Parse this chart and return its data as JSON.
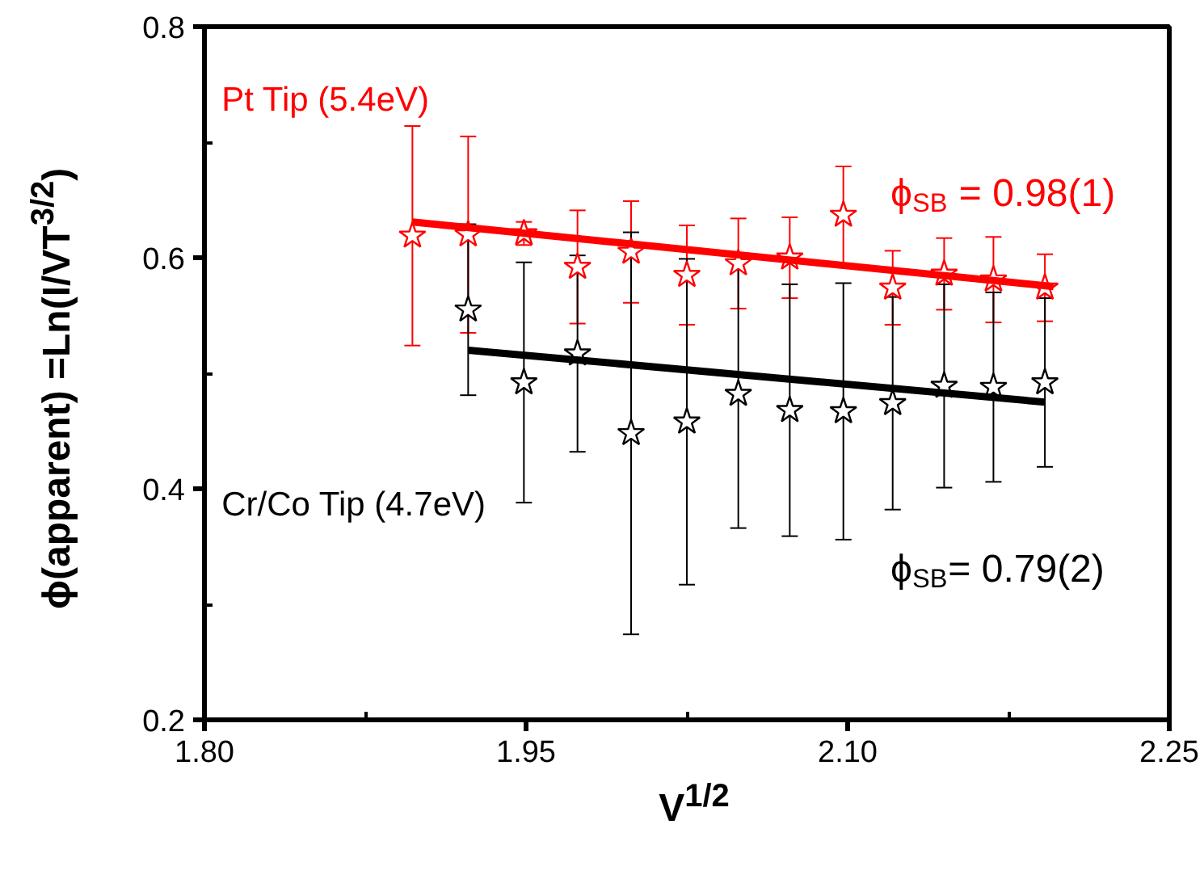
{
  "chart_data": {
    "type": "scatter",
    "xlabel": "V$^{1/2}$",
    "ylabel": "ϕ(apparent) =Ln(I/VT$^{3/2}$)",
    "xlim": [
      1.8,
      2.25
    ],
    "xticks": [
      {
        "value": 1.8,
        "label": "1.80"
      },
      1.95,
      {
        "value": 2.1,
        "label": "2.10"
      },
      2.25
    ],
    "ylim": [
      0.2,
      0.8
    ],
    "yticks": [
      0.2,
      0.4,
      0.6,
      0.8
    ],
    "annotations": [
      "ϕ$_{SB}$ = 0.98(1)",
      "ϕ$_{SB}$= 0.79(2)"
    ],
    "series": [
      {
        "name": "Pt Tip (5.4eV)",
        "marker": "star",
        "color": "#ff0000",
        "x": [
          1.897,
          1.923,
          1.949,
          1.974,
          1.999,
          2.025,
          2.049,
          2.073,
          2.098,
          2.121,
          2.145,
          2.168,
          2.192
        ],
        "values": [
          0.619,
          0.62,
          0.621,
          0.592,
          0.605,
          0.585,
          0.595,
          0.6,
          0.637,
          0.574,
          0.586,
          0.581,
          0.574
        ],
        "errors": [
          0.095,
          0.085,
          0.01,
          0.049,
          0.044,
          0.043,
          0.039,
          0.035,
          0.042,
          0.032,
          0.031,
          0.037,
          0.029
        ]
      },
      {
        "name": "Cr/Co Tip (4.7eV)",
        "marker": "star",
        "color": "#000000",
        "x": [
          1.923,
          1.949,
          1.974,
          1.999,
          2.025,
          2.049,
          2.073,
          2.098,
          2.121,
          2.145,
          2.168,
          2.192
        ],
        "values": [
          0.555,
          0.492,
          0.517,
          0.448,
          0.458,
          0.482,
          0.468,
          0.467,
          0.474,
          0.489,
          0.488,
          0.492
        ],
        "errors": [
          0.074,
          0.104,
          0.085,
          0.174,
          0.141,
          0.116,
          0.109,
          0.111,
          0.092,
          0.088,
          0.082,
          0.073
        ]
      },
      {
        "type": "line",
        "color": "#ff0000",
        "x": [
          1.897,
          2.196
        ],
        "values": [
          0.631,
          0.575
        ]
      },
      {
        "type": "line",
        "color": "#000000",
        "x": [
          1.923,
          2.192
        ],
        "values": [
          0.52,
          0.475
        ]
      }
    ]
  }
}
